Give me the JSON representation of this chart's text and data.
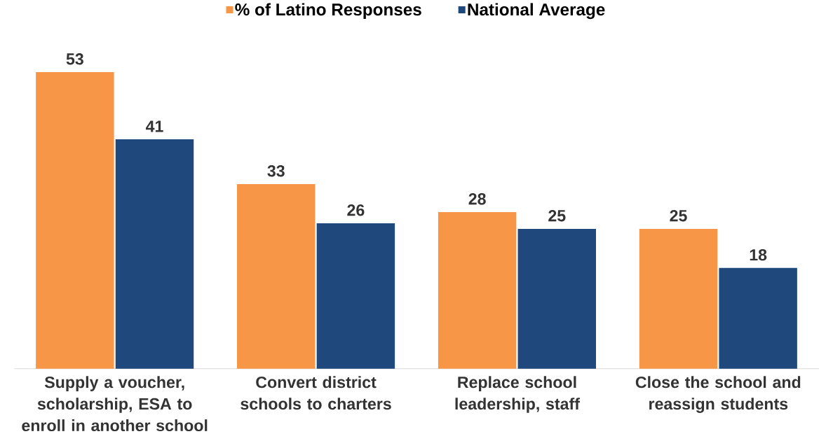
{
  "chart_data": {
    "type": "bar",
    "categories": [
      "Supply a voucher, scholarship, ESA to enroll in another school",
      "Convert district schools to charters",
      "Replace school leadership, staff",
      "Close the school and reassign students"
    ],
    "series": [
      {
        "name": "% of Latino Responses",
        "color": "#f79646",
        "values": [
          53,
          33,
          28,
          25
        ]
      },
      {
        "name": "National Average",
        "color": "#1f497d",
        "values": [
          41,
          26,
          25,
          18
        ]
      }
    ],
    "data_labels": true,
    "legend": "top",
    "tick_labels": "x"
  }
}
